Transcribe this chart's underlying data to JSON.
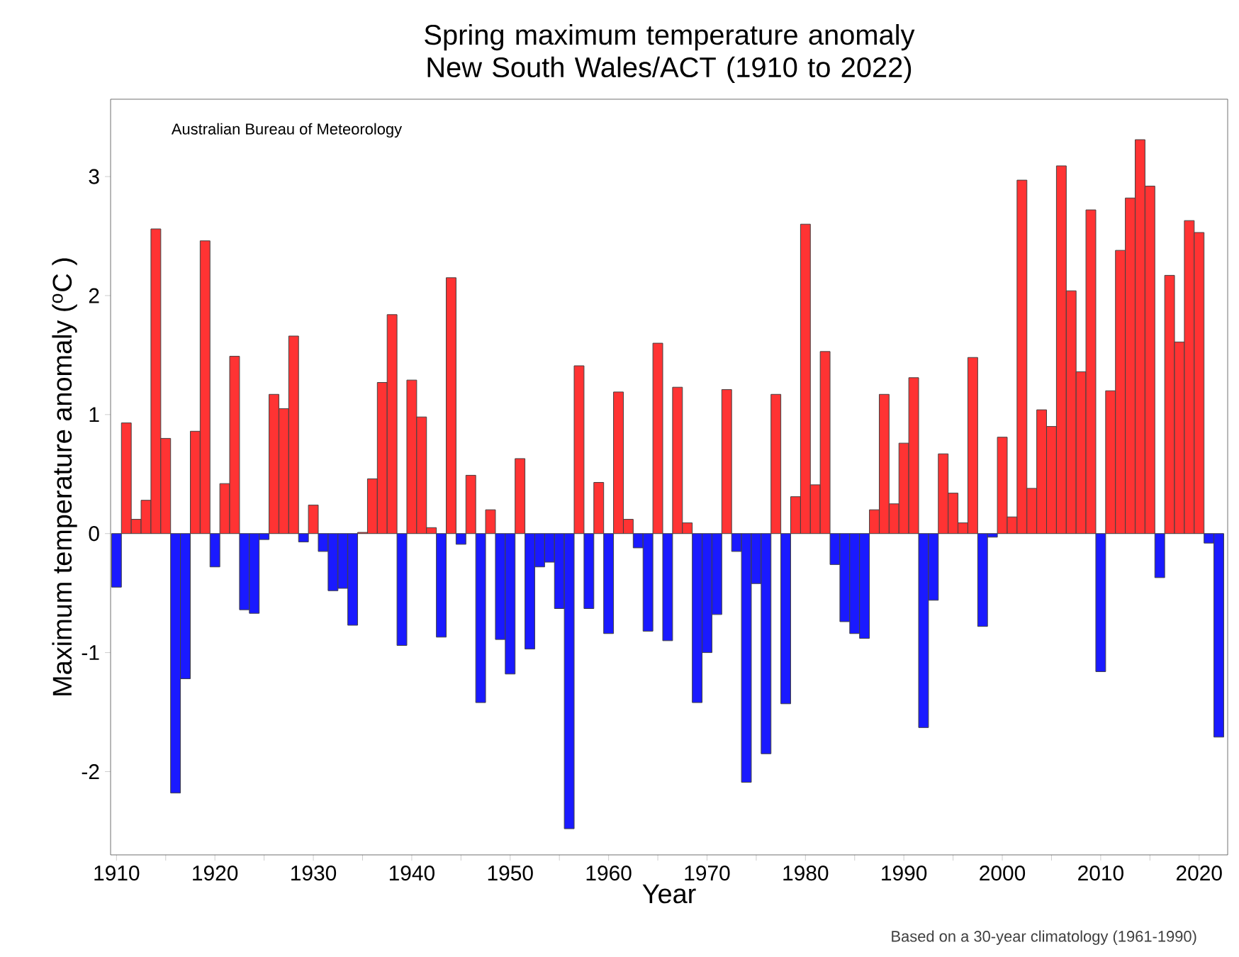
{
  "chart_data": {
    "type": "bar",
    "title": "Spring maximum temperature anomaly\nNew South Wales/ACT (1910 to 2022)",
    "xlabel": "Year",
    "ylabel": "Maximum temperature anomaly ($^{o}$C )",
    "annotations": [
      "Australian Bureau of Meteorology",
      "Based on a 30-year climatology (1961-1990)"
    ],
    "x": [
      1910,
      1911,
      1912,
      1913,
      1914,
      1915,
      1916,
      1917,
      1918,
      1919,
      1920,
      1921,
      1922,
      1923,
      1924,
      1925,
      1926,
      1927,
      1928,
      1929,
      1930,
      1931,
      1932,
      1933,
      1934,
      1935,
      1936,
      1937,
      1938,
      1939,
      1940,
      1941,
      1942,
      1943,
      1944,
      1945,
      1946,
      1947,
      1948,
      1949,
      1950,
      1951,
      1952,
      1953,
      1954,
      1955,
      1956,
      1957,
      1958,
      1959,
      1960,
      1961,
      1962,
      1963,
      1964,
      1965,
      1966,
      1967,
      1968,
      1969,
      1970,
      1971,
      1972,
      1973,
      1974,
      1975,
      1976,
      1977,
      1978,
      1979,
      1980,
      1981,
      1982,
      1983,
      1984,
      1985,
      1986,
      1987,
      1988,
      1989,
      1990,
      1991,
      1992,
      1993,
      1994,
      1995,
      1996,
      1997,
      1998,
      1999,
      2000,
      2001,
      2002,
      2003,
      2004,
      2005,
      2006,
      2007,
      2008,
      2009,
      2010,
      2011,
      2012,
      2013,
      2014,
      2015,
      2016,
      2017,
      2018,
      2019,
      2020,
      2021,
      2022
    ],
    "values": [
      -0.45,
      0.93,
      0.12,
      0.28,
      2.56,
      0.8,
      -2.18,
      -1.22,
      0.86,
      2.46,
      -0.28,
      0.42,
      1.49,
      -0.64,
      -0.67,
      -0.05,
      1.17,
      1.05,
      1.66,
      -0.07,
      0.24,
      -0.15,
      -0.48,
      -0.46,
      -0.77,
      0.01,
      0.46,
      1.27,
      1.84,
      -0.94,
      1.29,
      0.98,
      0.05,
      -0.87,
      2.15,
      -0.09,
      0.49,
      -1.42,
      0.2,
      -0.89,
      -1.18,
      0.63,
      -0.97,
      -0.28,
      -0.24,
      -0.63,
      -2.48,
      1.41,
      -0.63,
      0.43,
      -0.84,
      1.19,
      0.12,
      -0.12,
      -0.82,
      1.6,
      -0.9,
      1.23,
      0.09,
      -1.42,
      -1.0,
      -0.68,
      1.21,
      -0.15,
      -2.09,
      -0.42,
      -1.85,
      1.17,
      -1.43,
      0.31,
      2.6,
      0.41,
      1.53,
      -0.26,
      -0.74,
      -0.84,
      -0.88,
      0.2,
      1.17,
      0.25,
      0.76,
      1.31,
      -1.63,
      -0.56,
      0.67,
      0.34,
      0.09,
      1.48,
      -0.78,
      -0.03,
      0.81,
      0.14,
      2.97,
      0.38,
      1.04,
      0.9,
      3.09,
      2.04,
      1.36,
      2.72,
      -1.16,
      1.2,
      2.38,
      2.82,
      3.31,
      2.92,
      -0.37,
      2.17,
      1.61,
      2.63,
      2.53,
      -0.08,
      -1.71
    ],
    "colors": [
      "#1a1aff",
      "#ff3333",
      "#ff3333",
      "#ff3333",
      "#ff3333",
      "#ff3333",
      "#1a1aff",
      "#1a1aff",
      "#ff3333",
      "#ff3333",
      "#1a1aff",
      "#ff3333",
      "#ff3333",
      "#1a1aff",
      "#1a1aff",
      "#1a1aff",
      "#ff3333",
      "#ff3333",
      "#ff3333",
      "#1a1aff",
      "#ff3333",
      "#1a1aff",
      "#1a1aff",
      "#1a1aff",
      "#1a1aff",
      "#ff3333",
      "#ff3333",
      "#ff3333",
      "#ff3333",
      "#1a1aff",
      "#ff3333",
      "#ff3333",
      "#ff3333",
      "#1a1aff",
      "#ff3333",
      "#1a1aff",
      "#ff3333",
      "#1a1aff",
      "#ff3333",
      "#1a1aff",
      "#1a1aff",
      "#ff3333",
      "#1a1aff",
      "#1a1aff",
      "#1a1aff",
      "#1a1aff",
      "#1a1aff",
      "#ff3333",
      "#1a1aff",
      "#ff3333",
      "#1a1aff",
      "#ff3333",
      "#ff3333",
      "#1a1aff",
      "#1a1aff",
      "#ff3333",
      "#1a1aff",
      "#ff3333",
      "#ff3333",
      "#1a1aff",
      "#1a1aff",
      "#1a1aff",
      "#ff3333",
      "#1a1aff",
      "#1a1aff",
      "#1a1aff",
      "#1a1aff",
      "#ff3333",
      "#1a1aff",
      "#ff3333",
      "#ff3333",
      "#ff3333",
      "#ff3333",
      "#1a1aff",
      "#1a1aff",
      "#1a1aff",
      "#1a1aff",
      "#ff3333",
      "#ff3333",
      "#ff3333",
      "#ff3333",
      "#ff3333",
      "#1a1aff",
      "#1a1aff",
      "#ff3333",
      "#ff3333",
      "#ff3333",
      "#ff3333",
      "#1a1aff",
      "#1a1aff",
      "#ff3333",
      "#ff3333",
      "#ff3333",
      "#ff3333",
      "#ff3333",
      "#ff3333",
      "#ff3333",
      "#ff3333",
      "#ff3333",
      "#ff3333",
      "#1a1aff",
      "#ff3333",
      "#ff3333",
      "#ff3333",
      "#ff3333",
      "#ff3333",
      "#1a1aff",
      "#ff3333",
      "#ff3333",
      "#ff3333",
      "#ff3333",
      "#1a1aff",
      "#1a1aff"
    ],
    "xlim": [
      1909.4,
      2022.9
    ],
    "ylim": [
      -2.7,
      3.65
    ],
    "xticks": [
      1910,
      {
        "value": 1915,
        "label": null
      },
      1920,
      {
        "value": 1925,
        "label": null
      },
      1930,
      {
        "value": 1935,
        "label": null
      },
      1940,
      {
        "value": 1945,
        "label": null
      },
      1950,
      {
        "value": 1955,
        "label": null
      },
      1960,
      {
        "value": 1965,
        "label": null
      },
      1970,
      {
        "value": 1975,
        "label": null
      },
      1980,
      {
        "value": 1985,
        "label": null
      },
      1990,
      {
        "value": 1995,
        "label": null
      },
      2000,
      {
        "value": 2005,
        "label": null
      },
      2010,
      {
        "value": 2015,
        "label": null
      },
      2020
    ],
    "yticks": [
      -2,
      -1,
      0,
      1,
      2,
      3
    ]
  }
}
